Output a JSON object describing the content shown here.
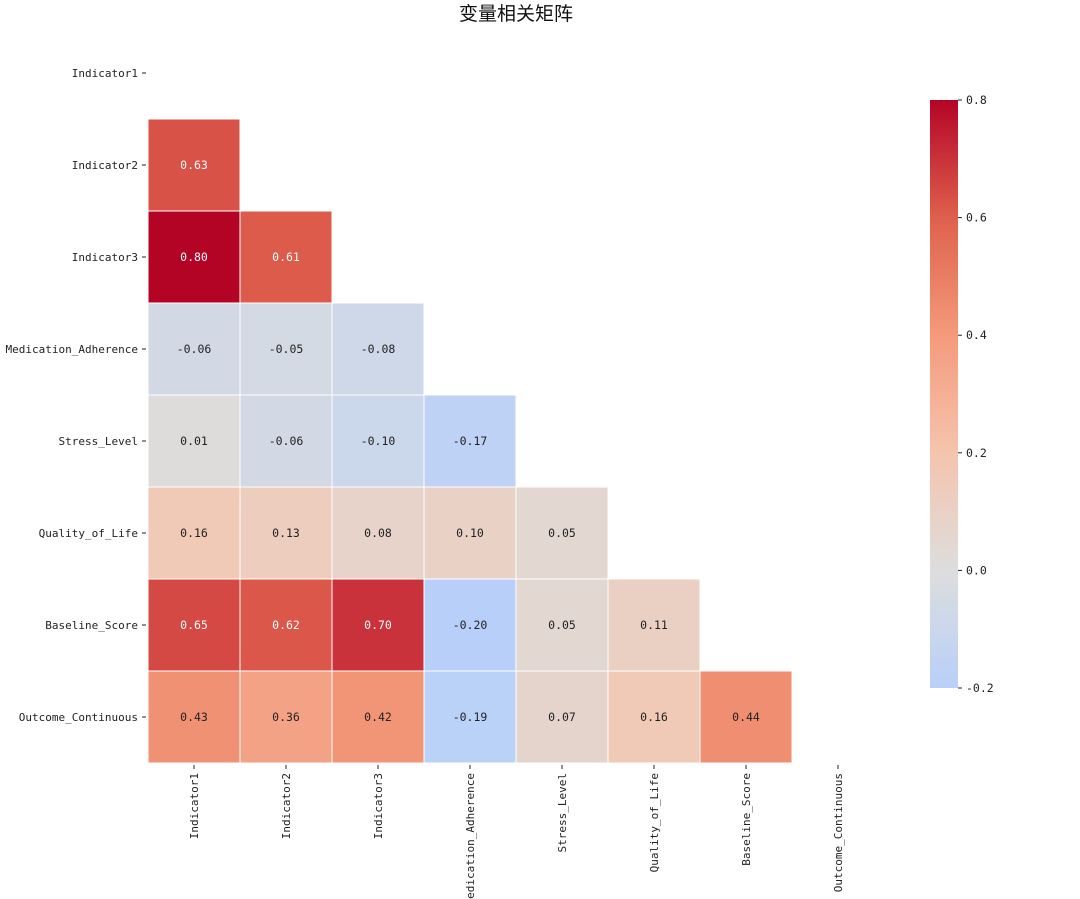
{
  "chart_data": {
    "type": "heatmap",
    "title": "变量相关矩阵",
    "variables": [
      "Indicator1",
      "Indicator2",
      "Indicator3",
      "Medication_Adherence",
      "Stress_Level",
      "Quality_of_Life",
      "Baseline_Score",
      "Outcome_Continuous"
    ],
    "mask": "upper-triangle",
    "matrix": [
      [
        null,
        null,
        null,
        null,
        null,
        null,
        null,
        null
      ],
      [
        0.63,
        null,
        null,
        null,
        null,
        null,
        null,
        null
      ],
      [
        0.8,
        0.61,
        null,
        null,
        null,
        null,
        null,
        null
      ],
      [
        -0.06,
        -0.05,
        -0.08,
        null,
        null,
        null,
        null,
        null
      ],
      [
        0.01,
        -0.06,
        -0.1,
        -0.17,
        null,
        null,
        null,
        null
      ],
      [
        0.16,
        0.13,
        0.08,
        0.1,
        0.05,
        null,
        null,
        null
      ],
      [
        0.65,
        0.62,
        0.7,
        -0.2,
        0.05,
        0.11,
        null,
        null
      ],
      [
        0.43,
        0.36,
        0.42,
        -0.19,
        0.07,
        0.16,
        0.44,
        null
      ]
    ],
    "labels": [
      [
        null,
        null,
        null,
        null,
        null,
        null,
        null,
        null
      ],
      [
        "0.63",
        null,
        null,
        null,
        null,
        null,
        null,
        null
      ],
      [
        "0.80",
        "0.61",
        null,
        null,
        null,
        null,
        null,
        null
      ],
      [
        "-0.06",
        "-0.05",
        "-0.08",
        null,
        null,
        null,
        null,
        null
      ],
      [
        "0.01",
        "-0.06",
        "-0.10",
        "-0.17",
        null,
        null,
        null,
        null
      ],
      [
        "0.16",
        "0.13",
        "0.08",
        "0.10",
        "0.05",
        null,
        null,
        null
      ],
      [
        "0.65",
        "0.62",
        "0.70",
        "-0.20",
        "0.05",
        "0.11",
        null,
        null
      ],
      [
        "0.43",
        "0.36",
        "0.42",
        "-0.19",
        "0.07",
        "0.16",
        "0.44",
        null
      ]
    ],
    "colormap": "coolwarm",
    "vmin": -0.2,
    "vmax": 0.8,
    "colorbar": {
      "ticks": [
        0.8,
        0.6,
        0.4,
        0.2,
        0.0,
        -0.2
      ],
      "tick_labels": [
        "0.8",
        "0.6",
        "0.4",
        "0.2",
        "0.0",
        "-0.2"
      ]
    }
  }
}
